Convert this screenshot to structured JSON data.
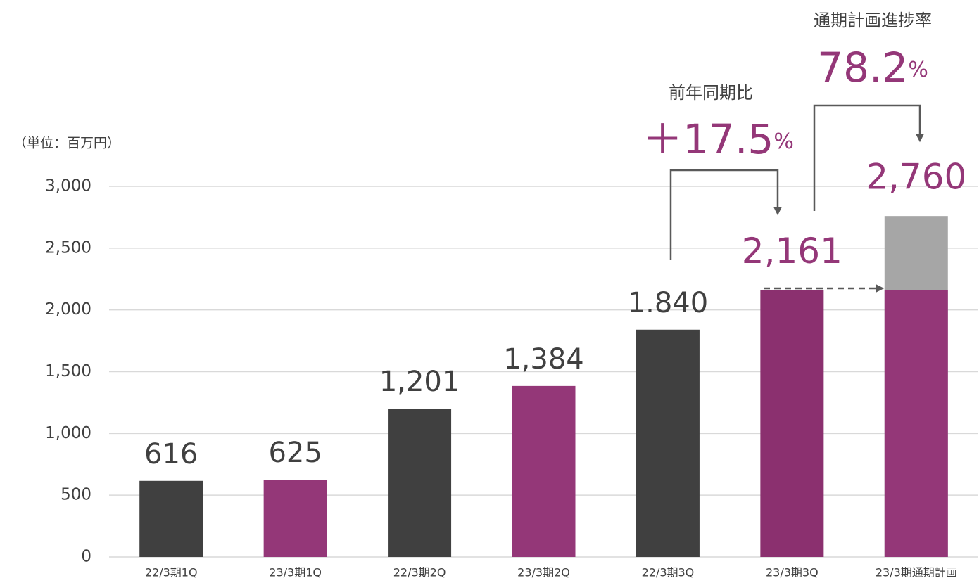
{
  "chart_data": {
    "type": "bar",
    "ylabel": "（単位：百万円）",
    "categories": [
      "22/3期1Q",
      "23/3期1Q",
      "22/3期2Q",
      "23/3期2Q",
      "22/3期3Q",
      "23/3期3Q",
      "23/3期通期計画"
    ],
    "values": [
      616,
      625,
      1201,
      1384,
      1840,
      2161,
      2760
    ],
    "value_labels": [
      "616",
      "625",
      "1,201",
      "1,384",
      "1.840",
      "2,161",
      "2,760"
    ],
    "colors": [
      "#404040",
      "#943778",
      "#404040",
      "#943778",
      "#404040",
      "#8b306f",
      "#a6a6a6"
    ],
    "label_colors": [
      "#404040",
      "#404040",
      "#404040",
      "#404040",
      "#404040",
      "#943778",
      "#943778"
    ],
    "progress_color": "#943778",
    "ylim": [
      0,
      3000
    ],
    "yticks": [
      0,
      500,
      {
        "value": 1000,
        "label": "1,000"
      },
      {
        "value": 1500,
        "label": "1,500"
      },
      {
        "value": 2000,
        "label": "2,000"
      },
      {
        "value": 2500,
        "label": "2,500"
      },
      {
        "value": 3000,
        "label": "3,000"
      }
    ],
    "grid": true,
    "annotations": [
      {
        "text": "前年同期比",
        "value_label": "＋17.5",
        "unit": "%"
      },
      {
        "text": "通期計画進捗率",
        "value_label": "78.2",
        "unit": "%"
      }
    ]
  }
}
